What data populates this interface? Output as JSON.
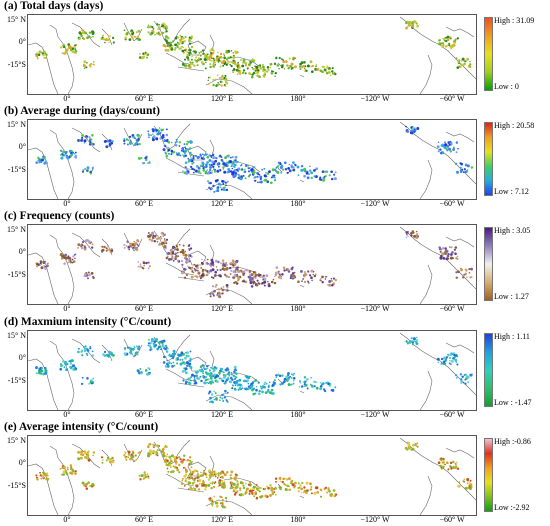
{
  "panels": [
    {
      "title": "(a) Total days (days)",
      "high": "High : 31.09",
      "low": "Low : 0",
      "gradient": [
        "#f07020",
        "#f0a020",
        "#e8d020",
        "#b8d820",
        "#60c020",
        "#00a000"
      ],
      "colorbar": "linear-gradient(to bottom,#f05020,#f0a020,#e8e020,#a0d020,#00a000)",
      "dot_colors": [
        "#2f8f1f",
        "#6fb52a",
        "#c9c82a",
        "#e3a230",
        "#1e7f18",
        "#a8c43a"
      ]
    },
    {
      "title": "(b) Average during (days/count)",
      "high": "High : 20.58",
      "low": "Low : 7.12",
      "colorbar": "linear-gradient(to bottom,#e02020,#f0a020,#e8e020,#40d060,#20b0e0,#2040f0)",
      "dot_colors": [
        "#2a4fd8",
        "#3a7ff0",
        "#2aa8e0",
        "#4ac84a",
        "#1f3ad0",
        "#6f9ff5"
      ]
    },
    {
      "title": "(c) Frequency (counts)",
      "high": "High : 3.05",
      "low": "Low : 1.27",
      "colorbar": "linear-gradient(to bottom,#4a1a80,#9080c0,#f0f0f0,#d8b070,#a06020)",
      "dot_colors": [
        "#a07040",
        "#c89a60",
        "#7060b0",
        "#5a3a90",
        "#b8a0d0",
        "#8a5a2a"
      ]
    },
    {
      "title": "(d) Maxmium intensity (°C/count)",
      "high": "High : 1.11",
      "low": "Low : -1.47",
      "colorbar": "linear-gradient(to bottom,#2040e0,#20a0e0,#30d0c0,#30c070,#10a030)",
      "dot_colors": [
        "#20a8d8",
        "#30c0c8",
        "#2a80e0",
        "#30b870",
        "#1a6ad8",
        "#5ad0d8"
      ]
    },
    {
      "title": "(e) Average intensity (°C/count)",
      "high": "High :-0.86",
      "low": "Low :-2.92",
      "colorbar": "linear-gradient(to bottom,#f0c0d0,#e03020,#f0a020,#e8e020,#80c020,#10a010)",
      "dot_colors": [
        "#c8b02a",
        "#e09a28",
        "#7ab52a",
        "#d04a20",
        "#a0b830",
        "#e8c840"
      ]
    }
  ],
  "lat_labels": [
    "15° N",
    "0°",
    "-15°S"
  ],
  "lon_labels": [
    "0°",
    "60° E",
    "120° E",
    "180°",
    "−120° W",
    "−60° W"
  ]
}
